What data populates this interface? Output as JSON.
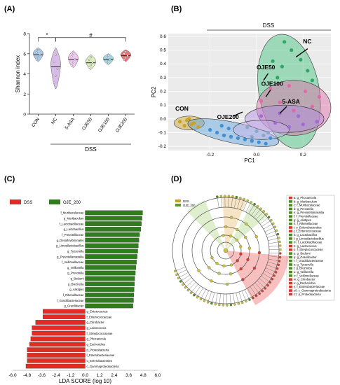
{
  "panels": {
    "a": "(A)",
    "b": "(B)",
    "c": "(C)",
    "d": "(D)"
  },
  "chart_data": [
    {
      "panel": "A",
      "type": "violin",
      "ylabel": "Shannon index",
      "categories": [
        "CON",
        "NC",
        "5-ASA",
        "OJE50",
        "OJE100",
        "OJE200"
      ],
      "group_label": "DSS",
      "ylim": [
        0,
        8
      ],
      "yticks": [
        0,
        2,
        4,
        6,
        8
      ],
      "colors": [
        "#8ab7e6",
        "#c9a6e0",
        "#e8b3ea",
        "#cde7a4",
        "#84cbe0",
        "#e34a4a"
      ],
      "medians": [
        5.9,
        4.7,
        5.4,
        5.1,
        5.4,
        5.8
      ],
      "ranges": [
        [
          5.2,
          6.6
        ],
        [
          2.5,
          6.6
        ],
        [
          4.6,
          6.3
        ],
        [
          4.4,
          5.9
        ],
        [
          4.9,
          6.0
        ],
        [
          5.2,
          6.4
        ]
      ],
      "significance": [
        {
          "from": "CON",
          "to": "NC",
          "mark": "*"
        },
        {
          "from": "NC",
          "to": "OJE200",
          "mark": "#"
        }
      ]
    },
    {
      "panel": "B",
      "type": "scatter",
      "xlabel": "PC1",
      "ylabel": "PC2",
      "xlim": [
        -0.38,
        0.32
      ],
      "ylim": [
        -0.23,
        0.62
      ],
      "xticks": [
        -0.2,
        0.0,
        0.2
      ],
      "yticks": [
        -0.2,
        -0.1,
        0.0,
        0.1,
        0.2,
        0.3,
        0.4,
        0.5,
        0.6
      ],
      "bracket_label": "DSS",
      "groups": [
        {
          "name": "CON",
          "color": "#c9a227",
          "points": [
            [
              -0.33,
              -0.02
            ],
            [
              -0.31,
              -0.05
            ],
            [
              -0.29,
              0.0
            ],
            [
              -0.27,
              -0.03
            ],
            [
              -0.25,
              -0.06
            ],
            [
              -0.3,
              -0.01
            ],
            [
              -0.28,
              -0.04
            ]
          ]
        },
        {
          "name": "OJE200",
          "color": "#3d8fd6",
          "points": [
            [
              -0.2,
              -0.08
            ],
            [
              -0.17,
              -0.1
            ],
            [
              -0.14,
              -0.12
            ],
            [
              -0.11,
              -0.13
            ],
            [
              -0.08,
              -0.14
            ],
            [
              -0.05,
              -0.15
            ],
            [
              -0.02,
              -0.16
            ],
            [
              0.01,
              -0.17
            ],
            [
              0.04,
              -0.18
            ],
            [
              -0.12,
              -0.07
            ],
            [
              -0.15,
              -0.05
            ],
            [
              0.06,
              -0.14
            ]
          ]
        },
        {
          "name": "OJE50",
          "color": "#2fa866",
          "points": [
            [
              0.12,
              0.56
            ],
            [
              0.15,
              0.5
            ],
            [
              0.19,
              0.43
            ],
            [
              0.07,
              0.42
            ],
            [
              0.11,
              0.38
            ],
            [
              0.22,
              0.35
            ],
            [
              0.24,
              0.28
            ],
            [
              0.09,
              0.3
            ]
          ]
        },
        {
          "name": "NC",
          "color": "#e06aa8",
          "points": [
            [
              0.06,
              0.22
            ],
            [
              0.14,
              0.24
            ],
            [
              0.21,
              0.2
            ],
            [
              0.27,
              0.16
            ],
            [
              0.02,
              0.13
            ],
            [
              0.1,
              0.12
            ],
            [
              0.24,
              0.09
            ],
            [
              0.16,
              0.06
            ]
          ]
        },
        {
          "name": "OJE100",
          "color": "#a36ad6",
          "points": [
            [
              0.02,
              0.02
            ],
            [
              0.08,
              -0.03
            ],
            [
              0.14,
              -0.06
            ],
            [
              0.2,
              -0.04
            ],
            [
              0.26,
              -0.02
            ],
            [
              0.1,
              0.04
            ],
            [
              0.18,
              0.02
            ]
          ]
        },
        {
          "name": "5-ASA",
          "color": "#8fa5c7",
          "points": [
            [
              -0.04,
              -0.06
            ],
            [
              0.0,
              -0.09
            ],
            [
              0.05,
              -0.1
            ],
            [
              0.03,
              -0.12
            ],
            [
              -0.02,
              -0.13
            ]
          ]
        }
      ],
      "ellipses": [
        {
          "group": "CON",
          "cx": -0.29,
          "cy": -0.03,
          "rx": 0.065,
          "ry": 0.05,
          "rot": 0,
          "color": "#c9a227"
        },
        {
          "group": "OJE200",
          "cx": -0.1,
          "cy": -0.1,
          "rx": 0.2,
          "ry": 0.075,
          "rot": 12,
          "color": "#5aa2e0"
        },
        {
          "group": "OJE50",
          "cx": 0.14,
          "cy": 0.2,
          "rx": 0.13,
          "ry": 0.42,
          "rot": -10,
          "color": "#3fc47a"
        },
        {
          "group": "NC",
          "cx": 0.16,
          "cy": 0.08,
          "rx": 0.16,
          "ry": 0.2,
          "rot": 0,
          "color": "#e06aa8"
        },
        {
          "group": "OJE100",
          "cx": 0.12,
          "cy": 0.0,
          "rx": 0.17,
          "ry": 0.1,
          "rot": 0,
          "color": "#b08ae0"
        },
        {
          "group": "5-ASA",
          "cx": 0.02,
          "cy": -0.08,
          "rx": 0.12,
          "ry": 0.07,
          "rot": 0,
          "color": "#c9b3e8"
        }
      ],
      "labels": [
        {
          "text": "CON",
          "x": -0.35,
          "y": 0.06
        },
        {
          "text": "OJE200",
          "x": -0.17,
          "y": 0.0
        },
        {
          "text": "NC",
          "x": 0.2,
          "y": 0.55
        },
        {
          "text": "OJE50",
          "x": 0.0,
          "y": 0.36
        },
        {
          "text": "OJE100",
          "x": 0.02,
          "y": 0.24
        },
        {
          "text": "5-ASA",
          "x": 0.11,
          "y": 0.11
        }
      ]
    },
    {
      "panel": "C",
      "type": "bar",
      "orientation": "horizontal",
      "xlabel": "LDA SCORE (log 10)",
      "xlim": [
        -6.0,
        6.0
      ],
      "xticks": [
        "-6.0",
        "-4.8",
        "-3.6",
        "-2.4",
        "-1.2",
        "0.0",
        "1.2",
        "2.4",
        "3.6",
        "4.8",
        "6.0"
      ],
      "legend": [
        {
          "name": "DSS",
          "color": "#e32b25"
        },
        {
          "name": "OJE_200",
          "color": "#2f7d1d"
        }
      ],
      "series": [
        {
          "name": "OJE_200",
          "color": "#2f7d1d",
          "categories": [
            "f_Muribaculaceae",
            "g_Muribaculum",
            "f_Lactobacillaceae",
            "g_Lactobacillus",
            "f_Prevotellaceae",
            "g_Desulfovibrionales",
            "g_Limosilactobacillus",
            "g_Tyzzerella",
            "g_Prevotellamassilia",
            "f_Veillonellaceae",
            "g_Veillonella",
            "g_Prevotella",
            "g_Bedumi",
            "g_Brezneba",
            "g_Alistipes",
            "f_Rikenellaceae",
            "f_Gracilibacteraceae",
            "g_Gracilibacter"
          ],
          "values": [
            4.75,
            4.7,
            4.65,
            4.6,
            4.5,
            4.45,
            4.4,
            4.35,
            4.3,
            4.25,
            4.2,
            4.15,
            4.1,
            4.08,
            4.05,
            4.02,
            4.0,
            3.95
          ]
        },
        {
          "name": "DSS",
          "color": "#e32b25",
          "categories": [
            "g_Enterococcus",
            "f_Enterococcaceae",
            "g_Citrobacter",
            "g_Lactococcus",
            "f_Streptococcaceae",
            "g_Phocaeicola",
            "g_Escherichia",
            "p_Proteobacteria",
            "f_Enterobacteriaceae",
            "o_Enterobacterales",
            "c_Gammaproteobacteria"
          ],
          "values": [
            -3.5,
            -3.5,
            -4.1,
            -4.4,
            -4.4,
            -4.5,
            -4.6,
            -4.8,
            -4.8,
            -4.8,
            -4.9
          ]
        }
      ]
    },
    {
      "panel": "D",
      "type": "cladogram",
      "legend": [
        {
          "name": "DSS",
          "color": "#c9a227"
        },
        {
          "name": "OJE_200",
          "color": "#5b9b2a"
        }
      ],
      "key": [
        "a: g_Phocaeicola",
        "b: g_Muribaculum",
        "c: f_Muribaculaceae",
        "d: g_Prevotella",
        "e: g_Prevotellamassilia",
        "f: f_Prevotellaceae",
        "g: g_Alistipes",
        "h: f_Rikenellaceae",
        "i: o_Enterobacterales",
        "j: f_Enterococcaceae",
        "k: g_Lactobacillus",
        "l: g_Limosilactobacillus",
        "m: f_Lactobacillaceae",
        "n: g_Lactococcus",
        "o: f_Streptococcaceae",
        "p: g_Bedumi",
        "q: g_Gracilibacter",
        "r: f_Gracilibacteraceae",
        "s: g_Tyzzerella",
        "t: g_Brezneba",
        "u: g_Veillonella",
        "v: f_Veillonellaceae",
        "w: g_Citrobacter",
        "x: g_Escherichia",
        "y: f_Enterobacteriaceae",
        "z0: c_Gammaproteobacteria",
        "z1: p_Proteobacteria"
      ]
    }
  ]
}
